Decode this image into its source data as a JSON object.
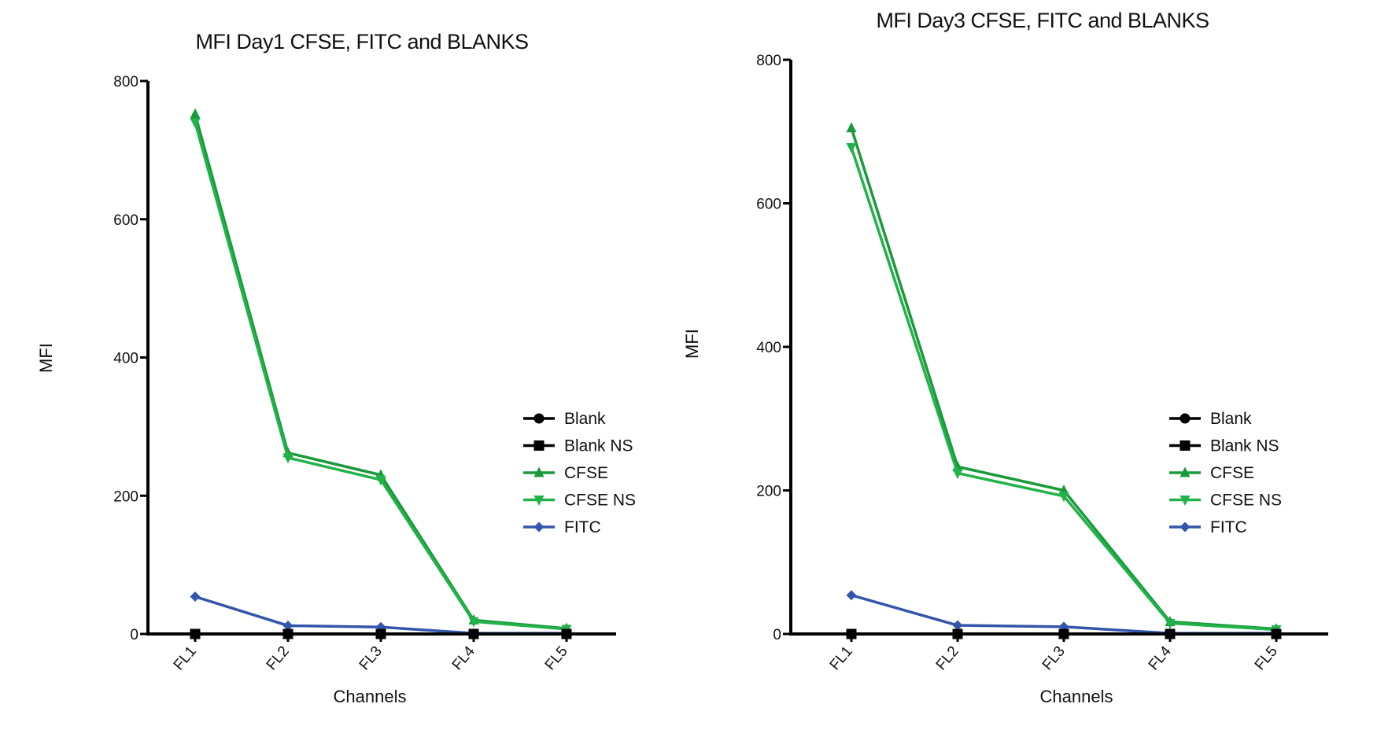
{
  "chart_data": [
    {
      "type": "line",
      "title": "MFI Day1 CFSE, FITC and BLANKS",
      "xlabel": "Channels",
      "ylabel": "MFI",
      "categories": [
        "FL1",
        "FL2",
        "FL3",
        "FL4",
        "FL5"
      ],
      "ylim": [
        0,
        800
      ],
      "yticks": [
        0,
        200,
        400,
        600,
        800
      ],
      "grid": false,
      "legend_position": "right",
      "series": [
        {
          "name": "Blank",
          "values": [
            0,
            0,
            0,
            0,
            0
          ],
          "color": "#000000",
          "marker": "circle"
        },
        {
          "name": "Blank NS",
          "values": [
            0,
            0,
            0,
            0,
            0
          ],
          "color": "#000000",
          "marker": "square"
        },
        {
          "name": "CFSE",
          "values": [
            752,
            262,
            230,
            20,
            8
          ],
          "color": "#1a9a3a",
          "marker": "triangle-up"
        },
        {
          "name": "CFSE NS",
          "values": [
            740,
            255,
            223,
            18,
            7
          ],
          "color": "#22b24a",
          "marker": "triangle-down"
        },
        {
          "name": "FITC",
          "values": [
            54,
            12,
            10,
            1,
            1
          ],
          "color": "#3355aa",
          "marker": "diamond"
        }
      ]
    },
    {
      "type": "line",
      "title": "MFI Day3 CFSE, FITC and BLANKS",
      "xlabel": "Channels",
      "ylabel": "MFI",
      "categories": [
        "FL1",
        "FL2",
        "FL3",
        "FL4",
        "FL5"
      ],
      "ylim": [
        0,
        800
      ],
      "yticks": [
        0,
        200,
        400,
        600,
        800
      ],
      "grid": false,
      "legend_position": "right",
      "series": [
        {
          "name": "Blank",
          "values": [
            0,
            0,
            0,
            0,
            0
          ],
          "color": "#000000",
          "marker": "circle"
        },
        {
          "name": "Blank NS",
          "values": [
            0,
            0,
            0,
            0,
            0
          ],
          "color": "#000000",
          "marker": "square"
        },
        {
          "name": "CFSE",
          "values": [
            705,
            233,
            200,
            17,
            7
          ],
          "color": "#1a9a3a",
          "marker": "triangle-up"
        },
        {
          "name": "CFSE NS",
          "values": [
            678,
            224,
            192,
            15,
            6
          ],
          "color": "#22b24a",
          "marker": "triangle-down"
        },
        {
          "name": "FITC",
          "values": [
            54,
            12,
            10,
            1,
            1
          ],
          "color": "#3355aa",
          "marker": "diamond"
        }
      ]
    }
  ]
}
